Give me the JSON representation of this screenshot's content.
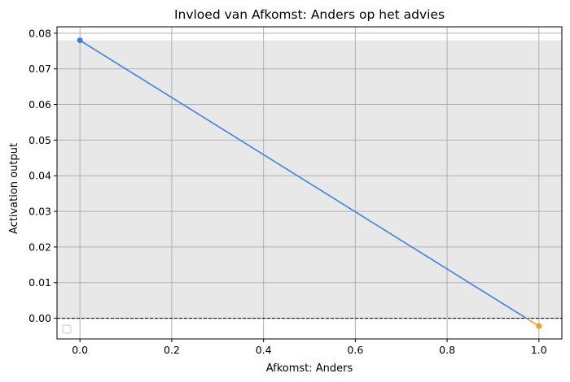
{
  "chart_data": {
    "type": "line",
    "title": "Invloed van Afkomst: Anders op het advies",
    "xlabel": "Afkomst: Anders",
    "ylabel": "Activation output",
    "xlim": [
      -0.05,
      1.05
    ],
    "ylim": [
      -0.0058,
      0.0818
    ],
    "x_ticks": [
      0.0,
      0.2,
      0.4,
      0.6,
      0.8,
      1.0
    ],
    "x_tick_labels": [
      "0.0",
      "0.2",
      "0.4",
      "0.6",
      "0.8",
      "1.0"
    ],
    "y_ticks": [
      0.0,
      0.01,
      0.02,
      0.03,
      0.04,
      0.05,
      0.06,
      0.07,
      0.08
    ],
    "y_tick_labels": [
      "0.00",
      "0.01",
      "0.02",
      "0.03",
      "0.04",
      "0.05",
      "0.06",
      "0.07",
      "0.08"
    ],
    "grid": true,
    "shaded_band": {
      "y_from": 0.0,
      "y_to": 0.078,
      "color": "#e8e8e8"
    },
    "reference_line": {
      "y": 0.0,
      "style": "dashed",
      "color": "#000000"
    },
    "points": [
      {
        "x": 0.0,
        "y": 0.078,
        "color": "#3b82e6"
      },
      {
        "x": 1.0,
        "y": -0.0022,
        "color": "#f0a030"
      }
    ],
    "line_color_positive": "#3b82e6",
    "line_color_negative": "#f0a030",
    "legend": {
      "placement": "lower-left",
      "entries": []
    }
  }
}
